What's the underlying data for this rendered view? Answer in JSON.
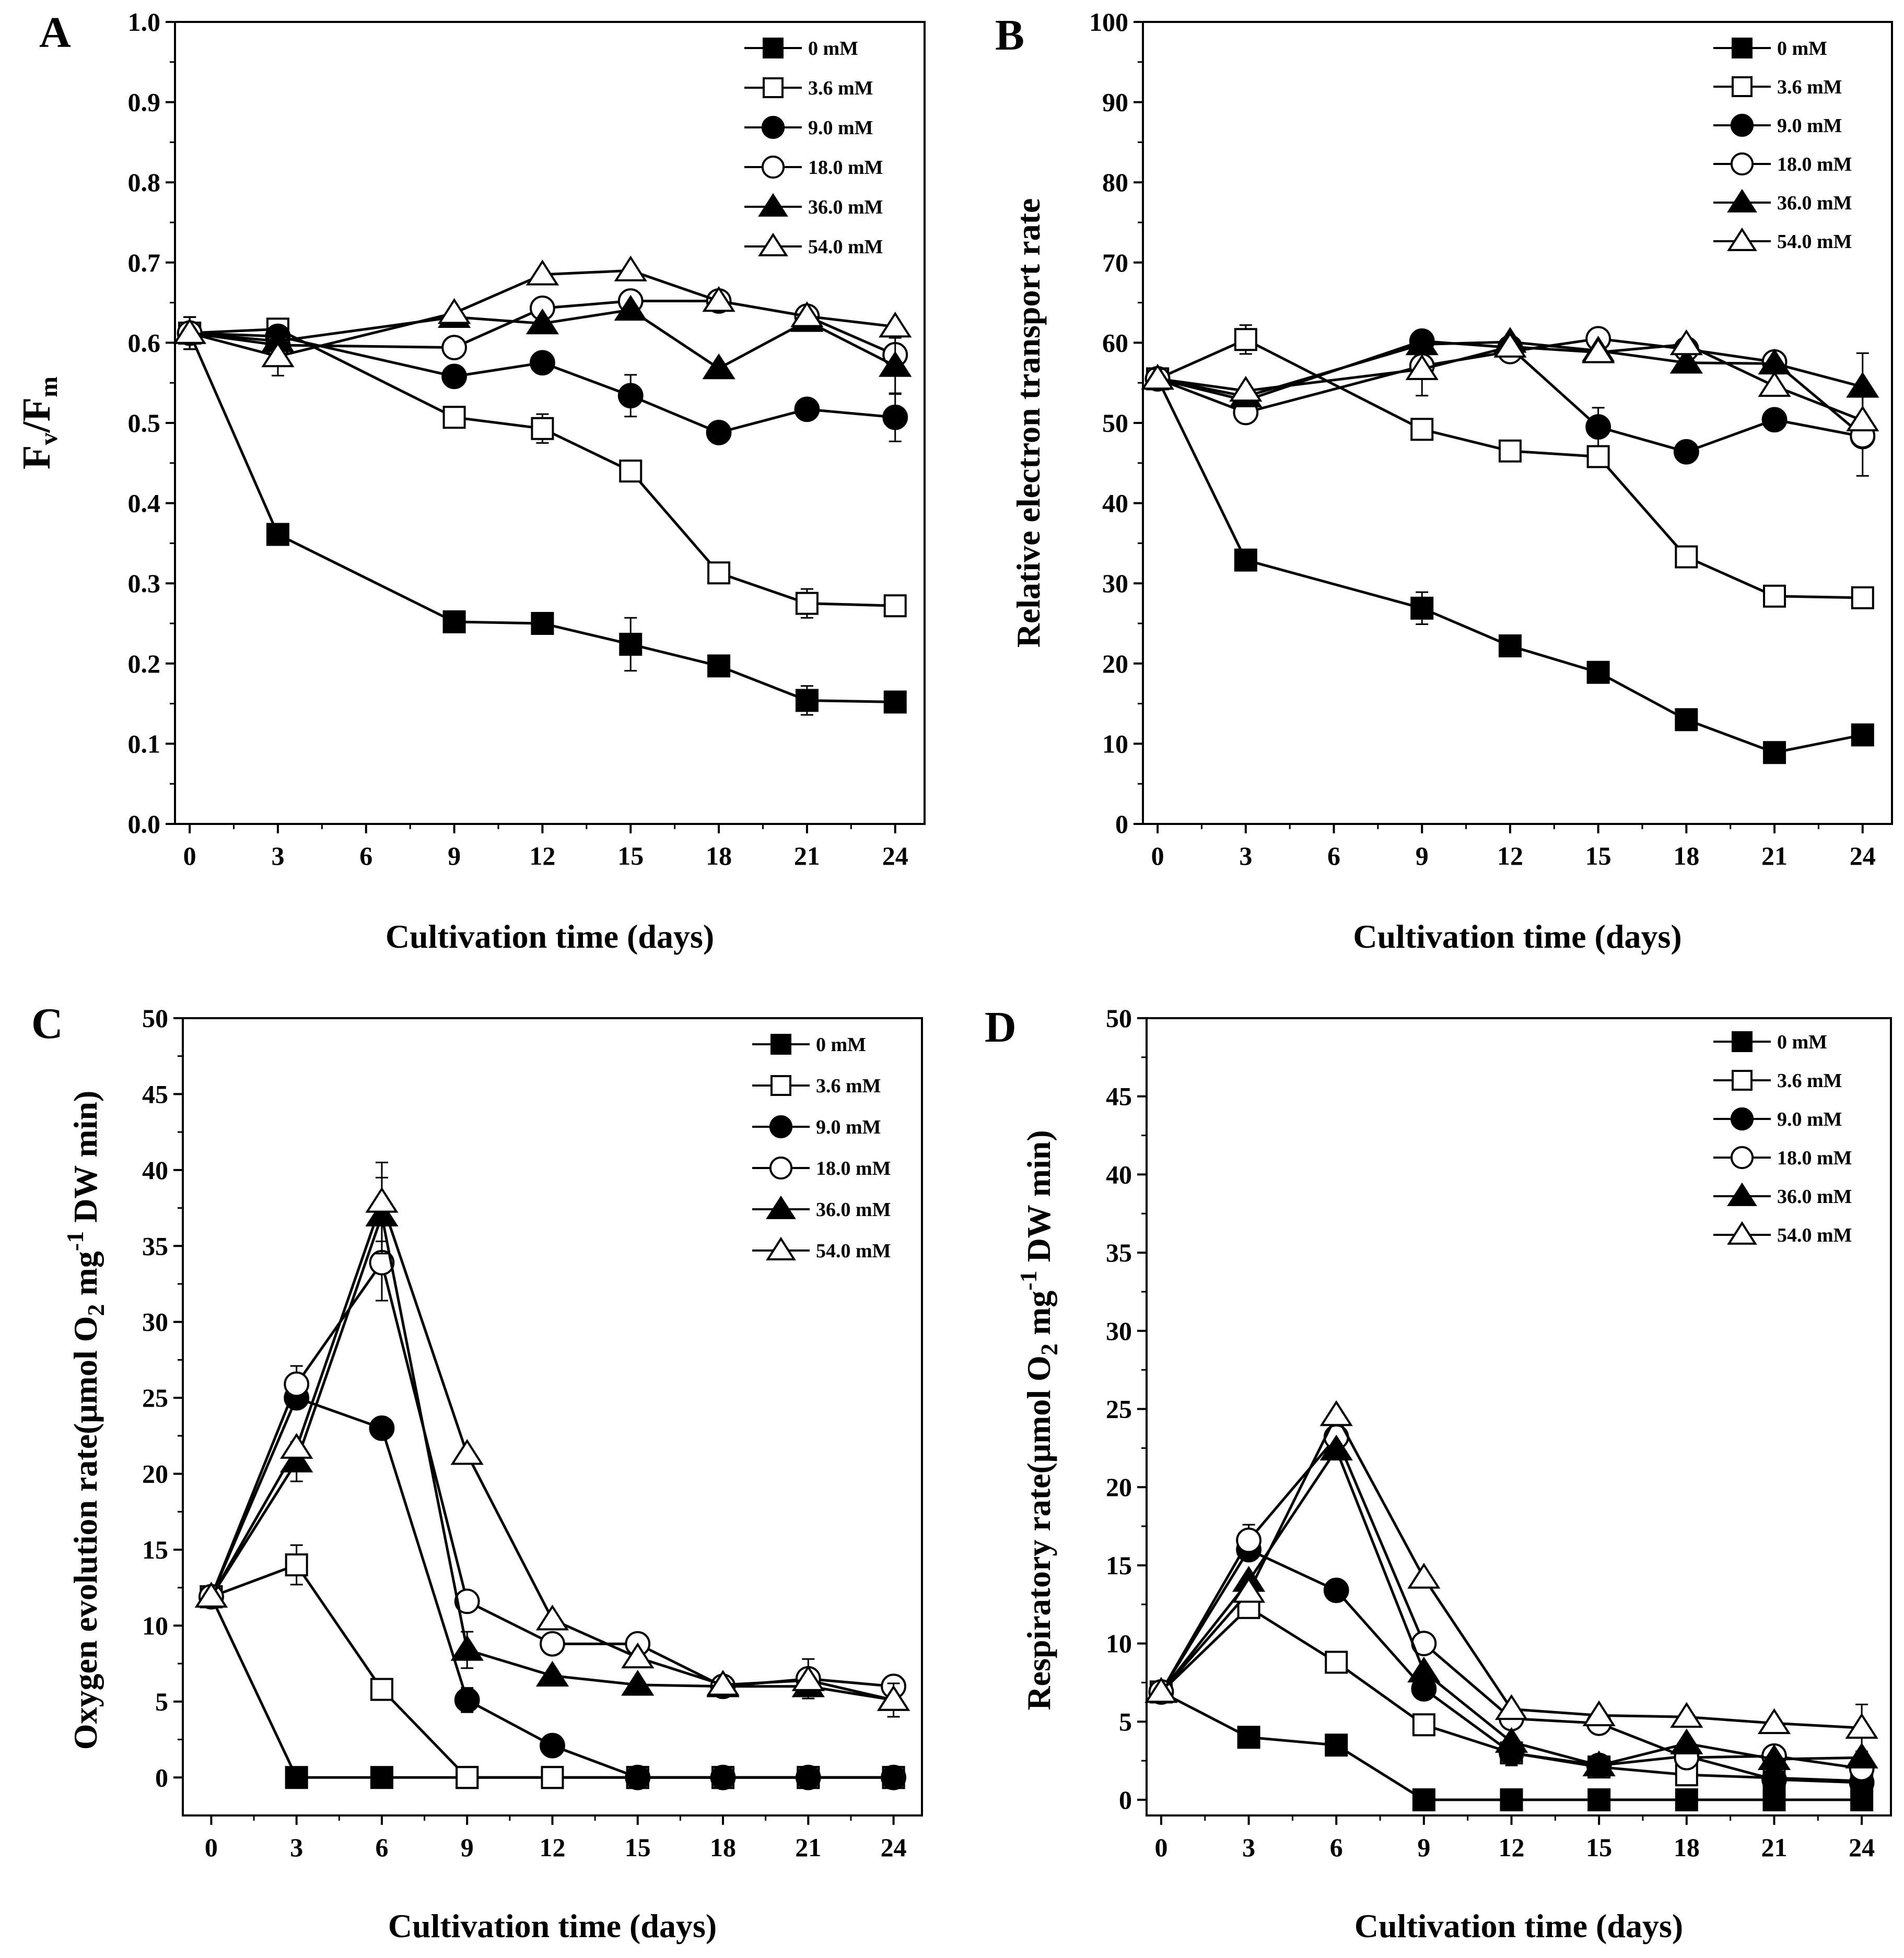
{
  "figure": {
    "panels": [
      "A",
      "B",
      "C",
      "D"
    ]
  },
  "chart_data": [
    {
      "panel": "A",
      "type": "line",
      "xlabel": "Cultivation time (days)",
      "ylabel_main": "F",
      "ylabel_sub1": "v",
      "ylabel_mid": "/F",
      "ylabel_sub2": "m",
      "xlim": [
        -0.5,
        25
      ],
      "ylim": [
        0,
        1.0
      ],
      "xticks": [
        0,
        3,
        6,
        9,
        12,
        15,
        18,
        21,
        24
      ],
      "yticks": [
        0.0,
        0.1,
        0.2,
        0.3,
        0.4,
        0.5,
        0.6,
        0.7,
        0.8,
        0.9,
        1.0
      ],
      "ytick_labels": [
        "0.0",
        "0.1",
        "0.2",
        "0.3",
        "0.4",
        "0.5",
        "0.6",
        "0.7",
        "0.8",
        "0.9",
        "1.0"
      ],
      "x": [
        0,
        3,
        9,
        12,
        15,
        18,
        21,
        24
      ],
      "legend_position": "top-right",
      "series": [
        {
          "name": "0 mM",
          "marker": "square",
          "filled": true,
          "values": [
            0.612,
            0.361,
            0.252,
            0.25,
            0.224,
            0.197,
            0.154,
            0.152
          ],
          "errors": [
            0.02,
            0.005,
            0.005,
            0.005,
            0.033,
            0.005,
            0.018,
            0.005
          ]
        },
        {
          "name": "3.6 mM",
          "marker": "square",
          "filled": false,
          "values": [
            0.612,
            0.617,
            0.507,
            0.493,
            0.44,
            0.313,
            0.275,
            0.272
          ],
          "errors": [
            0.02,
            0.005,
            0.005,
            0.018,
            0.005,
            0.005,
            0.018,
            0.01
          ]
        },
        {
          "name": "9.0 mM",
          "marker": "circle",
          "filled": true,
          "values": [
            0.612,
            0.608,
            0.558,
            0.575,
            0.534,
            0.488,
            0.517,
            0.507
          ],
          "errors": [
            0.02,
            0.005,
            0.005,
            0.005,
            0.026,
            0.005,
            0.005,
            0.03
          ]
        },
        {
          "name": "18.0 mM",
          "marker": "circle",
          "filled": false,
          "values": [
            0.612,
            0.597,
            0.594,
            0.643,
            0.652,
            0.652,
            0.633,
            0.585
          ],
          "errors": [
            0.02,
            0.01,
            0.005,
            0.005,
            0.005,
            0.005,
            0.005,
            0.005
          ]
        },
        {
          "name": "36.0 mM",
          "marker": "triangle",
          "filled": true,
          "values": [
            0.612,
            0.602,
            0.632,
            0.624,
            0.641,
            0.568,
            0.627,
            0.571
          ],
          "errors": [
            0.02,
            0.005,
            0.005,
            0.005,
            0.005,
            0.005,
            0.005,
            0.035
          ]
        },
        {
          "name": "54.0 mM",
          "marker": "triangle",
          "filled": false,
          "values": [
            0.612,
            0.583,
            0.637,
            0.685,
            0.69,
            0.652,
            0.633,
            0.62
          ],
          "errors": [
            0.02,
            0.024,
            0.005,
            0.005,
            0.005,
            0.005,
            0.005,
            0.005
          ]
        }
      ]
    },
    {
      "panel": "B",
      "type": "line",
      "xlabel": "Cultivation time (days)",
      "ylabel": "Relative electron transport rate",
      "xlim": [
        -0.5,
        25
      ],
      "ylim": [
        0,
        100
      ],
      "xticks": [
        0,
        3,
        6,
        9,
        12,
        15,
        18,
        21,
        24
      ],
      "yticks": [
        0,
        10,
        20,
        30,
        40,
        50,
        60,
        70,
        80,
        90,
        100
      ],
      "ytick_labels": [
        "0",
        "10",
        "20",
        "30",
        "40",
        "50",
        "60",
        "70",
        "80",
        "90",
        "100"
      ],
      "x": [
        0,
        3,
        9,
        12,
        15,
        18,
        21,
        24
      ],
      "legend_position": "top-right",
      "series": [
        {
          "name": "0 mM",
          "marker": "square",
          "filled": true,
          "values": [
            55.5,
            32.9,
            26.9,
            22.2,
            18.9,
            13.0,
            8.9,
            11.1
          ],
          "errors": [
            1.2,
            0.5,
            2.0,
            0.5,
            0.5,
            0.5,
            0.5,
            0.5
          ]
        },
        {
          "name": "3.6 mM",
          "marker": "square",
          "filled": false,
          "values": [
            55.5,
            60.4,
            49.2,
            46.5,
            45.8,
            33.3,
            28.4,
            28.2
          ],
          "errors": [
            1.2,
            1.8,
            1.0,
            0.5,
            0.5,
            0.5,
            0.5,
            0.5
          ]
        },
        {
          "name": "9.0 mM",
          "marker": "circle",
          "filled": true,
          "values": [
            55.5,
            52.8,
            60.2,
            59.4,
            49.5,
            46.4,
            50.4,
            48.3
          ],
          "errors": [
            1.2,
            0.5,
            0.5,
            0.5,
            2.4,
            0.5,
            0.5,
            0.5
          ]
        },
        {
          "name": "18.0 mM",
          "marker": "circle",
          "filled": false,
          "values": [
            55.5,
            51.3,
            57.1,
            58.9,
            60.5,
            59.2,
            57.6,
            48.4
          ],
          "errors": [
            1.2,
            0.5,
            0.5,
            0.5,
            0.5,
            0.5,
            0.5,
            5.0
          ]
        },
        {
          "name": "36.0 mM",
          "marker": "triangle",
          "filled": true,
          "values": [
            55.5,
            53.3,
            59.8,
            60.1,
            59.0,
            57.5,
            57.4,
            54.5
          ],
          "errors": [
            1.2,
            0.5,
            0.5,
            0.5,
            0.5,
            0.5,
            0.5,
            4.2
          ]
        },
        {
          "name": "54.0 mM",
          "marker": "triangle",
          "filled": false,
          "values": [
            55.5,
            54.0,
            56.7,
            59.5,
            58.8,
            59.8,
            54.6,
            50.3
          ],
          "errors": [
            1.2,
            0.5,
            3.3,
            0.5,
            0.5,
            0.5,
            0.5,
            0.5
          ]
        }
      ]
    },
    {
      "panel": "C",
      "type": "line",
      "xlabel": "Cultivation time (days)",
      "ylabel_pre": "Oxygen evolution rate(μmol O",
      "ylabel_sub": "2",
      "ylabel_mid": " mg",
      "ylabel_sup": "-1",
      "ylabel_post": " DW min)",
      "xlim": [
        -1,
        25
      ],
      "ylim": [
        -2.5,
        50
      ],
      "xticks": [
        0,
        3,
        6,
        9,
        12,
        15,
        18,
        21,
        24
      ],
      "yticks": [
        0,
        5,
        10,
        15,
        20,
        25,
        30,
        35,
        40,
        45,
        50
      ],
      "ytick_labels": [
        "0",
        "5",
        "10",
        "15",
        "20",
        "25",
        "30",
        "35",
        "40",
        "45",
        "50"
      ],
      "x": [
        0,
        3,
        6,
        9,
        12,
        15,
        18,
        21,
        24
      ],
      "legend_position": "top-right",
      "series": [
        {
          "name": "0 mM",
          "marker": "square",
          "filled": true,
          "values": [
            11.9,
            0,
            0,
            0,
            0,
            0,
            0,
            0,
            0
          ],
          "errors": [
            0.2,
            0.1,
            0.1,
            0.1,
            0.1,
            0.1,
            0.1,
            0.1,
            0.1
          ]
        },
        {
          "name": "3.6 mM",
          "marker": "square",
          "filled": false,
          "values": [
            11.9,
            14.0,
            5.8,
            0,
            0,
            0,
            0,
            0,
            0
          ],
          "errors": [
            0.2,
            1.3,
            0.2,
            0.1,
            0.1,
            0.1,
            0.1,
            0.1,
            0.1
          ]
        },
        {
          "name": "9.0 mM",
          "marker": "circle",
          "filled": true,
          "values": [
            11.9,
            25.0,
            23.0,
            5.1,
            2.1,
            0,
            0,
            0,
            0
          ],
          "errors": [
            0.2,
            0.2,
            0.2,
            0.8,
            0.2,
            0.1,
            0.1,
            0.1,
            0.1
          ]
        },
        {
          "name": "18.0 mM",
          "marker": "circle",
          "filled": false,
          "values": [
            11.9,
            25.9,
            33.9,
            11.6,
            8.8,
            8.8,
            6.0,
            6.5,
            6.0
          ],
          "errors": [
            0.2,
            1.2,
            2.5,
            0.2,
            0.2,
            0.2,
            0.2,
            1.3,
            0.2
          ]
        },
        {
          "name": "36.0 mM",
          "marker": "triangle",
          "filled": true,
          "values": [
            11.9,
            20.8,
            37.0,
            8.4,
            6.7,
            6.1,
            6.0,
            6.0,
            5.1
          ],
          "errors": [
            0.2,
            1.3,
            2.5,
            1.2,
            0.2,
            0.2,
            0.2,
            0.2,
            0.2
          ]
        },
        {
          "name": "54.0 mM",
          "marker": "triangle",
          "filled": false,
          "values": [
            11.9,
            21.7,
            37.9,
            21.3,
            10.4,
            7.9,
            6.1,
            6.4,
            5.1
          ],
          "errors": [
            0.2,
            0.2,
            2.6,
            0.2,
            0.2,
            0.2,
            0.2,
            0.2,
            1.1
          ]
        }
      ]
    },
    {
      "panel": "D",
      "type": "line",
      "xlabel": "Cultivation time (days)",
      "ylabel_pre": "Respiratory rate(μmol O",
      "ylabel_sub": "2",
      "ylabel_mid": " mg",
      "ylabel_sup": "-1",
      "ylabel_post": " DW min)",
      "xlim": [
        -0.5,
        25
      ],
      "ylim": [
        -1,
        50
      ],
      "xticks": [
        0,
        3,
        6,
        9,
        12,
        15,
        18,
        21,
        24
      ],
      "yticks": [
        0,
        5,
        10,
        15,
        20,
        25,
        30,
        35,
        40,
        45,
        50
      ],
      "ytick_labels": [
        "0",
        "5",
        "10",
        "15",
        "20",
        "25",
        "30",
        "35",
        "40",
        "45",
        "50"
      ],
      "x": [
        0,
        3,
        6,
        9,
        12,
        15,
        18,
        21,
        24
      ],
      "legend_position": "top-right",
      "series": [
        {
          "name": "0 mM",
          "marker": "square",
          "filled": true,
          "values": [
            6.9,
            4.0,
            3.5,
            0,
            0,
            0,
            0,
            0,
            0
          ],
          "errors": [
            0.2,
            0.1,
            0.1,
            0.1,
            0.1,
            0.1,
            0.1,
            0.1,
            0.1
          ]
        },
        {
          "name": "3.6 mM",
          "marker": "square",
          "filled": false,
          "values": [
            6.9,
            12.3,
            8.8,
            4.8,
            3.0,
            2.1,
            1.6,
            1.4,
            1.2
          ],
          "errors": [
            0.2,
            0.5,
            0.2,
            0.2,
            0.8,
            0.2,
            0.2,
            0.2,
            0.2
          ]
        },
        {
          "name": "9.0 mM",
          "marker": "circle",
          "filled": true,
          "values": [
            6.9,
            16.0,
            13.4,
            7.1,
            3.0,
            2.2,
            2.8,
            1.3,
            1.1
          ],
          "errors": [
            0.2,
            0.2,
            0.2,
            0.2,
            0.2,
            0.2,
            0.2,
            0.2,
            0.2
          ]
        },
        {
          "name": "18.0 mM",
          "marker": "circle",
          "filled": false,
          "values": [
            6.9,
            16.6,
            23.2,
            10.0,
            5.2,
            4.9,
            2.7,
            2.8,
            2.0
          ],
          "errors": [
            0.2,
            1.0,
            0.2,
            0.2,
            0.2,
            0.2,
            0.2,
            0.2,
            0.2
          ]
        },
        {
          "name": "36.0 mM",
          "marker": "triangle",
          "filled": true,
          "values": [
            6.9,
            14.0,
            22.4,
            8.2,
            3.7,
            2.2,
            3.6,
            2.6,
            2.7
          ],
          "errors": [
            0.2,
            0.2,
            0.2,
            0.2,
            0.2,
            0.2,
            0.2,
            0.2,
            0.2
          ]
        },
        {
          "name": "54.0 mM",
          "marker": "triangle",
          "filled": false,
          "values": [
            6.9,
            13.3,
            24.6,
            14.2,
            5.8,
            5.4,
            5.3,
            4.9,
            4.6
          ],
          "errors": [
            0.2,
            0.2,
            0.2,
            0.2,
            0.2,
            0.2,
            0.2,
            0.2,
            1.5
          ]
        }
      ]
    }
  ]
}
